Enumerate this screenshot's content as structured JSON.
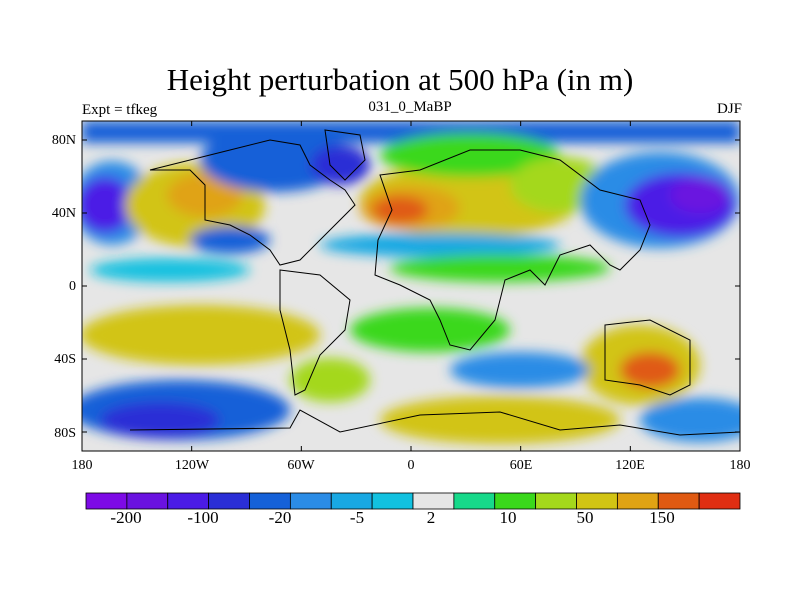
{
  "title": "Height perturbation at 500 hPa (in m)",
  "left_string": "Expt = tfkeg",
  "center_string": "031_0_MaBP",
  "right_string": "DJF",
  "y_ticks": [
    "80N",
    "40N",
    "0",
    "40S",
    "80S"
  ],
  "x_ticks": [
    "180",
    "120W",
    "60W",
    "0",
    "60E",
    "120E",
    "180"
  ],
  "colorbar": {
    "colors": [
      "#7d0ae6",
      "#6a12e0",
      "#4b1be6",
      "#2a2ed6",
      "#1561d8",
      "#2b8ce6",
      "#18a8e3",
      "#12c1e0",
      "#e6e6e6",
      "#17d98a",
      "#3ad81b",
      "#a4d81b",
      "#d2c414",
      "#e0a314",
      "#e05a12",
      "#e02e12"
    ],
    "labels": [
      "-200",
      "-100",
      "-20",
      "-5",
      "2",
      "10",
      "50",
      "150"
    ]
  },
  "chart_data": {
    "type": "heatmap",
    "title": "Height perturbation at 500 hPa (in m)",
    "subtitle": "031_0_MaBP",
    "left_annotation": "Expt = tfkeg",
    "right_annotation": "DJF",
    "x_range": [
      -180,
      180
    ],
    "y_range": [
      -90,
      90
    ],
    "x_tick_labels": [
      "180",
      "120W",
      "60W",
      "0",
      "60E",
      "120E",
      "180"
    ],
    "y_tick_labels": [
      "80N",
      "40N",
      "0",
      "40S",
      "80S"
    ],
    "colorbar_levels": [
      "-200",
      "-100",
      "-20",
      "-5",
      "2",
      "10",
      "50",
      "150"
    ],
    "features": [
      {
        "region": "central North Pacific near 40N",
        "sign": "negative",
        "range": "-200 to -100"
      },
      {
        "region": "North Africa / Mediterranean near 40N",
        "sign": "positive",
        "range": "50 to 150"
      },
      {
        "region": "Southern Ocean near 60S",
        "sign": "negative",
        "range": "-100 to -20"
      },
      {
        "region": "south Indian Ocean near 50S, 100E",
        "sign": "positive",
        "range": "50 to 150"
      }
    ]
  }
}
